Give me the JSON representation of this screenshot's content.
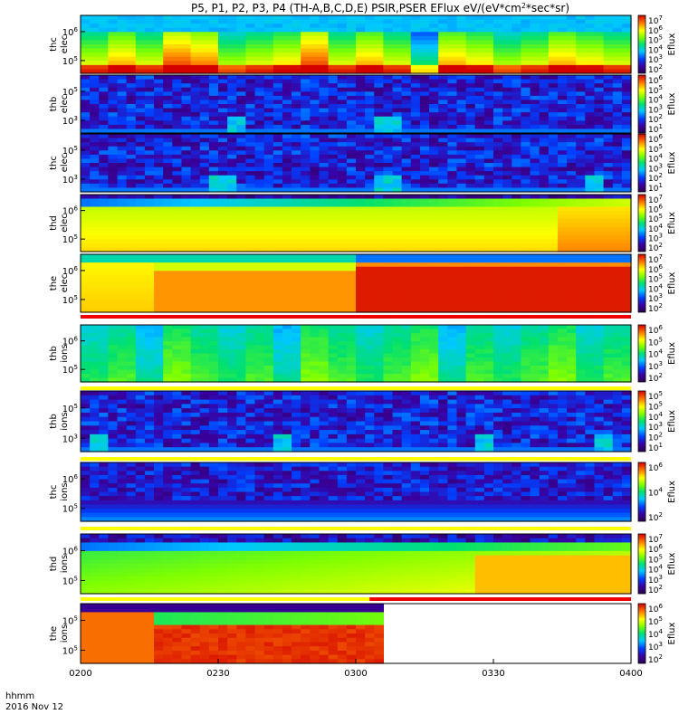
{
  "chart_data": {
    "type": "heatmap",
    "title_prefix": "P5, P1, P2, P3, P4 (TH-A,B,C,D,E) PSIR,PSER EFlux eV/(eV*cm",
    "title_sup": "2",
    "title_suffix": "*sec*sr)",
    "x_ticks": [
      "0200",
      "0230",
      "0300",
      "0330",
      "0400"
    ],
    "x_tick_fracs": [
      0,
      0.25,
      0.5,
      0.75,
      1
    ],
    "x_label_line1": "hhmm",
    "x_label_line2": "2016 Nov 12",
    "colorbar_label": "Eflux",
    "panels": [
      {
        "id": "thc_elec",
        "ylabel": [
          "thc",
          "elec"
        ],
        "yticks": [
          "10^6",
          "10^5"
        ],
        "cbticks": [
          "10^7",
          "10^6",
          "10^5",
          "10^4",
          "10^3",
          "10^2"
        ],
        "bar": "none",
        "style": "elec_green",
        "pattern": [
          0.5,
          0.6,
          0.5,
          0.7,
          0.65,
          0.45,
          0.5,
          0.55,
          0.7,
          0.5,
          0.6,
          0.5,
          0.3,
          0.6,
          0.55,
          0.45,
          0.5,
          0.6,
          0.55,
          0.5
        ]
      },
      {
        "id": "thb_elec",
        "ylabel": [
          "thb",
          "elec"
        ],
        "yticks": [
          "10^5",
          "10^3"
        ],
        "cbticks": [
          "10^6",
          "10^5",
          "10^4",
          "10^3",
          "10^2",
          "10^1"
        ],
        "bar": "none",
        "style": "noise",
        "spikes": [
          0.28,
          0.55
        ]
      },
      {
        "id": "thc_elec_2",
        "ylabel": [
          "thc",
          "elec"
        ],
        "yticks": [
          "10^5",
          "10^3"
        ],
        "cbticks": [
          "10^6",
          "10^5",
          "10^4",
          "10^3",
          "10^2",
          "10^1"
        ],
        "bar": "none",
        "style": "noise",
        "spikes": [
          0.25,
          0.55,
          0.93
        ]
      },
      {
        "id": "thd_elec",
        "ylabel": [
          "thd",
          "elec"
        ],
        "yticks": [
          "10^6",
          "10^5"
        ],
        "cbticks": [
          "10^7",
          "10^6",
          "10^5",
          "10^4",
          "10^3",
          "10^2"
        ],
        "bar": "none",
        "style": "smooth_yellow"
      },
      {
        "id": "the_elec",
        "ylabel": [
          "the",
          "elec"
        ],
        "yticks": [
          "10^6",
          "10^5"
        ],
        "cbticks": [
          "10^7",
          "10^6",
          "10^5",
          "10^4",
          "10^3",
          "10^2"
        ],
        "bar": "red",
        "style": "the_elec"
      },
      {
        "id": "thb_ions",
        "ylabel": [
          "thb",
          "ions"
        ],
        "yticks": [
          "10^6",
          "10^5"
        ],
        "cbticks": [
          "10^6",
          "10^5",
          "10^4",
          "10^3",
          "10^2"
        ],
        "bar": "yellow",
        "style": "ions_green",
        "pattern": [
          0.45,
          0.5,
          0.4,
          0.55,
          0.5,
          0.45,
          0.5,
          0.4,
          0.55,
          0.5,
          0.45,
          0.5,
          0.55,
          0.4,
          0.5,
          0.45,
          0.5,
          0.55,
          0.45,
          0.5
        ]
      },
      {
        "id": "thb_ions_2",
        "ylabel": [
          "thb",
          "ions"
        ],
        "yticks": [
          "10^5",
          "10^3"
        ],
        "cbticks": [
          "10^5",
          "10^5",
          "10^4",
          "10^3",
          "10^2",
          "10^1"
        ],
        "bar": "yellow",
        "style": "noise",
        "spikes": [
          0.03,
          0.36,
          0.72,
          0.94
        ]
      },
      {
        "id": "thc_ions",
        "ylabel": [
          "thc",
          "ions"
        ],
        "yticks": [
          "10^6",
          "10^5"
        ],
        "cbticks": [
          "10^6",
          "10^4",
          "10^2"
        ],
        "bar": "yellow",
        "style": "noise_low"
      },
      {
        "id": "thd_ions",
        "ylabel": [
          "thd",
          "ions"
        ],
        "yticks": [
          "10^6",
          "10^5"
        ],
        "cbticks": [
          "10^7",
          "10^6",
          "10^5",
          "10^4",
          "10^3",
          "10^2"
        ],
        "bar": "yellow_red",
        "style": "thd_ions"
      },
      {
        "id": "the_ions",
        "ylabel": [
          "the",
          "ions"
        ],
        "yticks": [
          "10^5",
          "10^5"
        ],
        "cbticks": [
          "10^6",
          "10^5",
          "10^4",
          "10^3",
          "10^2"
        ],
        "bar": "none",
        "style": "the_ions",
        "end_frac": 0.54
      }
    ]
  }
}
